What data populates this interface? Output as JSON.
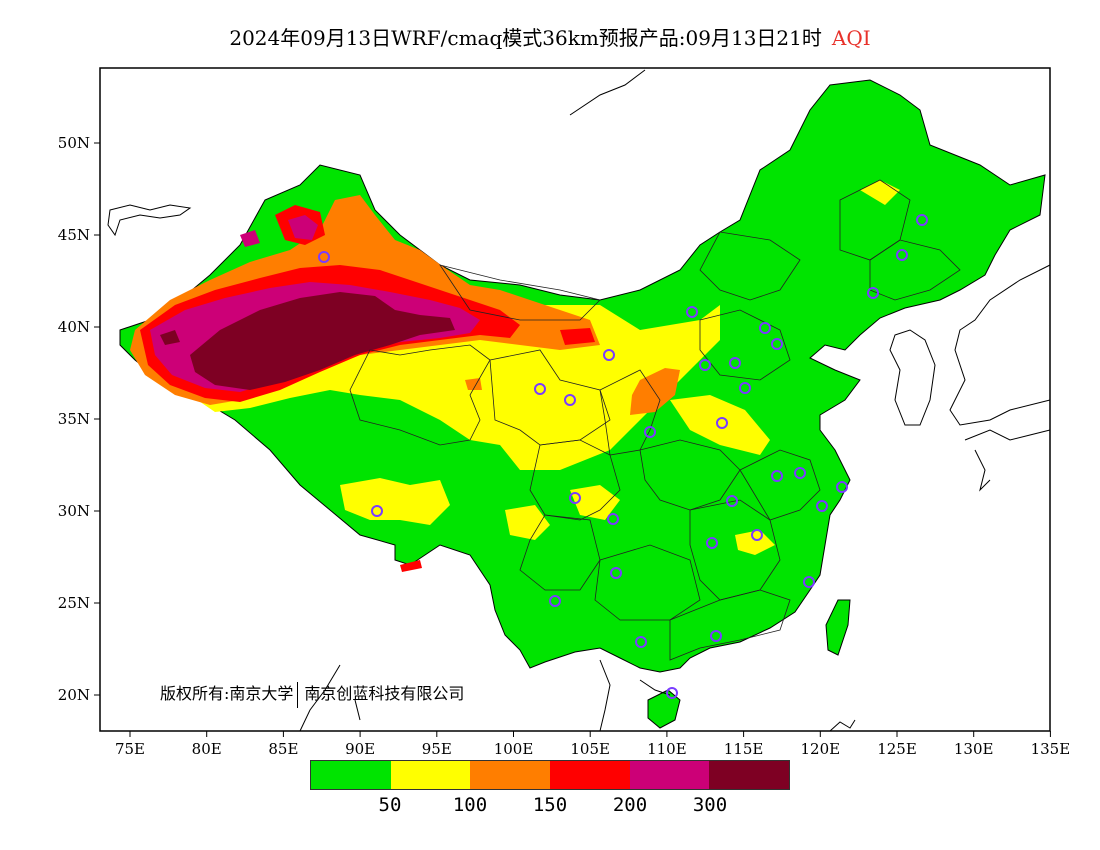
{
  "title": {
    "main": "2024年09月13日WRF/cmaq模式36km预报产品:09月13日21时",
    "variable": "AQI",
    "variable_color": "#e8322b"
  },
  "axes": {
    "lon_ticks": [
      "75E",
      "80E",
      "85E",
      "90E",
      "95E",
      "100E",
      "105E",
      "110E",
      "115E",
      "120E",
      "125E",
      "130E",
      "135E"
    ],
    "lat_ticks": [
      "20N",
      "25N",
      "30N",
      "35N",
      "40N",
      "45N",
      "50N"
    ]
  },
  "colorbar": {
    "colors": [
      "#00e400",
      "#ffff00",
      "#ff7e00",
      "#ff0000",
      "#cc0077",
      "#7e0023"
    ],
    "labels": [
      "50",
      "100",
      "150",
      "200",
      "300"
    ]
  },
  "copyright": {
    "part1": "版权所有:南京大学",
    "part2": "南京创蓝科技有限公司"
  },
  "colors": {
    "land": "#00e400",
    "good": "#00e400",
    "moderate": "#ffff00",
    "usg": "#ff7e00",
    "unhealthy": "#ff0000",
    "very_unhealthy": "#cc0077",
    "hazardous": "#7e0023",
    "station_marker": "#7a3cff"
  }
}
